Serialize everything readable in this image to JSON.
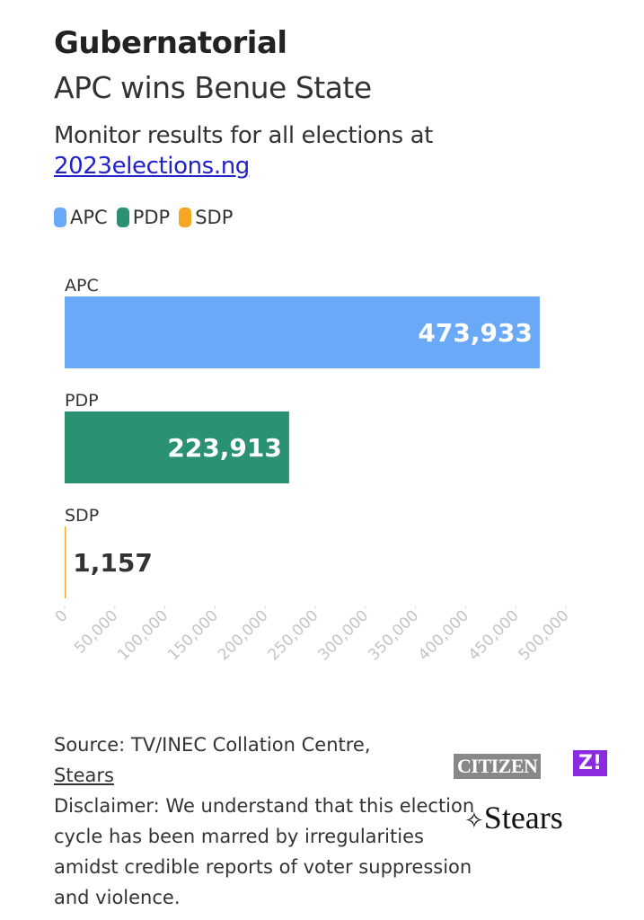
{
  "chart_data": {
    "type": "bar",
    "orientation": "horizontal",
    "title": "Gubernatorial",
    "subtitle": "APC wins Benue State",
    "intro": "Monitor results for all elections at",
    "link": "2023elections.ng",
    "categories": [
      "APC",
      "PDP",
      "SDP"
    ],
    "values": [
      473933,
      223913,
      1157
    ],
    "value_labels": [
      "473,933",
      "223,913",
      "1,157"
    ],
    "colors": [
      "#6aa9f7",
      "#2a9173",
      "#f5a623"
    ],
    "xlim": [
      0,
      500000
    ],
    "xticks": [
      0,
      {
        "value": 50000,
        "label": "50,000"
      },
      {
        "value": 100000,
        "label": "100,000"
      },
      {
        "value": 150000,
        "label": "150,000"
      },
      {
        "value": 200000,
        "label": "200,000"
      },
      {
        "value": 250000,
        "label": "250,000"
      },
      {
        "value": 300000,
        "label": "300,000"
      },
      {
        "value": 350000,
        "label": "350,000"
      },
      {
        "value": 400000,
        "label": "400,000"
      },
      {
        "value": 450000,
        "label": "450,000"
      },
      {
        "value": 500000,
        "label": "500,000"
      }
    ],
    "grid": false,
    "source": "Source: TV/INEC Collation Centre,",
    "source_link": "Stears",
    "disclaimer": "Disclaimer: We understand that this election cycle has been marred by irregularities amidst credible reports of voter suppression and violence."
  },
  "logos": {
    "citizen": "CITIZEN",
    "zikoko": "Z!",
    "stears": "Stears"
  }
}
